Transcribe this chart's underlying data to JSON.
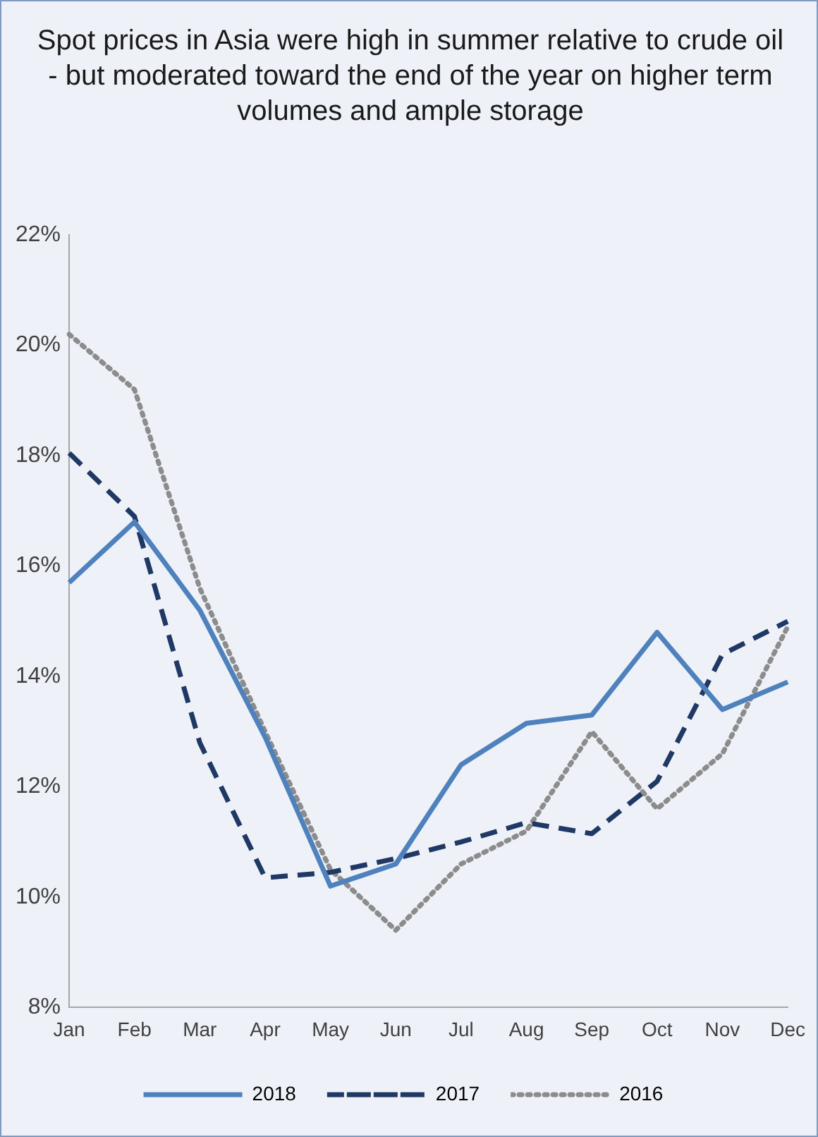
{
  "chart_data": {
    "type": "line",
    "title": "Spot prices in Asia were high in summer relative to crude oil - but moderated toward the end of the year on higher term volumes and ample storage",
    "categories": [
      "Jan",
      "Feb",
      "Mar",
      "Apr",
      "May",
      "Jun",
      "Jul",
      "Aug",
      "Sep",
      "Oct",
      "Nov",
      "Dec"
    ],
    "ylim": [
      8,
      22
    ],
    "yticks": [
      {
        "value": 8,
        "label": "8%"
      },
      {
        "value": 10,
        "label": "10%"
      },
      {
        "value": 12,
        "label": "12%"
      },
      {
        "value": 14,
        "label": "14%"
      },
      {
        "value": 16,
        "label": "16%"
      },
      {
        "value": 18,
        "label": "18%"
      },
      {
        "value": 20,
        "label": "20%"
      },
      {
        "value": 22,
        "label": "22%"
      }
    ],
    "grid": false,
    "legend": "bottom",
    "marker": "none",
    "series": [
      {
        "name": "2018",
        "color": "#4f81bd",
        "line_style": "solid",
        "values": [
          15.7,
          16.8,
          15.2,
          12.9,
          10.2,
          10.6,
          12.4,
          13.15,
          13.3,
          14.8,
          13.4,
          13.9
        ]
      },
      {
        "name": "2017",
        "color": "#1f3864",
        "line_style": "dashed",
        "values": [
          18.05,
          16.9,
          12.8,
          10.35,
          10.45,
          10.7,
          11.0,
          11.35,
          11.15,
          12.1,
          14.4,
          15.0
        ]
      },
      {
        "name": "2016",
        "color": "#8c8c8c",
        "line_style": "dotted",
        "values": [
          20.2,
          19.2,
          15.6,
          13.0,
          10.5,
          9.4,
          10.6,
          11.2,
          13.0,
          11.6,
          12.6,
          14.9
        ]
      }
    ]
  }
}
